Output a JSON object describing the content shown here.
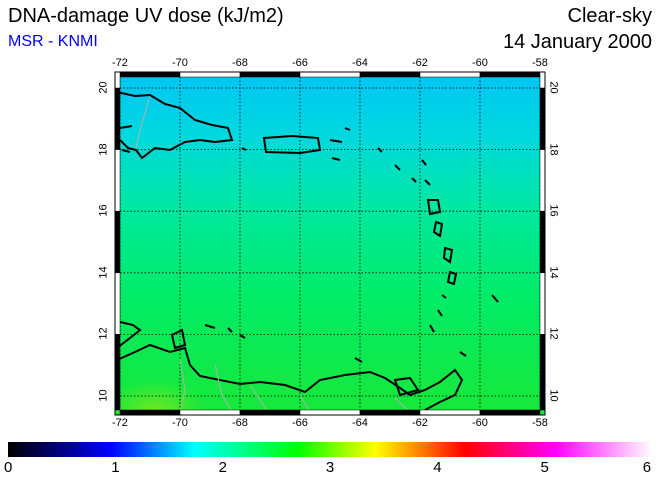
{
  "header": {
    "title": "DNA-damage UV dose (kJ/m2)",
    "source": "MSR - KNMI",
    "condition": "Clear-sky",
    "date": "14 January 2000"
  },
  "map": {
    "lon_ticks": [
      "-72",
      "-70",
      "-68",
      "-66",
      "-64",
      "-62",
      "-60",
      "-58"
    ],
    "lat_ticks": [
      "20",
      "18",
      "16",
      "14",
      "12",
      "10"
    ],
    "lon_values": [
      -72,
      -70,
      -68,
      -66,
      -64,
      -62,
      -60,
      -58
    ],
    "lat_values": [
      20,
      18,
      16,
      14,
      12,
      10
    ],
    "colors": {
      "top": "#00c8f8",
      "mid": "#00e890",
      "bottom": "#20e830",
      "coast": "#000000",
      "border": "#a0a0a0"
    }
  },
  "colorbar": {
    "labels": [
      "0",
      "1",
      "2",
      "3",
      "4",
      "5",
      "6"
    ],
    "range": [
      0,
      6
    ],
    "stops": [
      "#000000",
      "#0000ff",
      "#00ffff",
      "#00ff00",
      "#ffff00",
      "#ff0000",
      "#ff00ff",
      "#ffffff"
    ]
  }
}
